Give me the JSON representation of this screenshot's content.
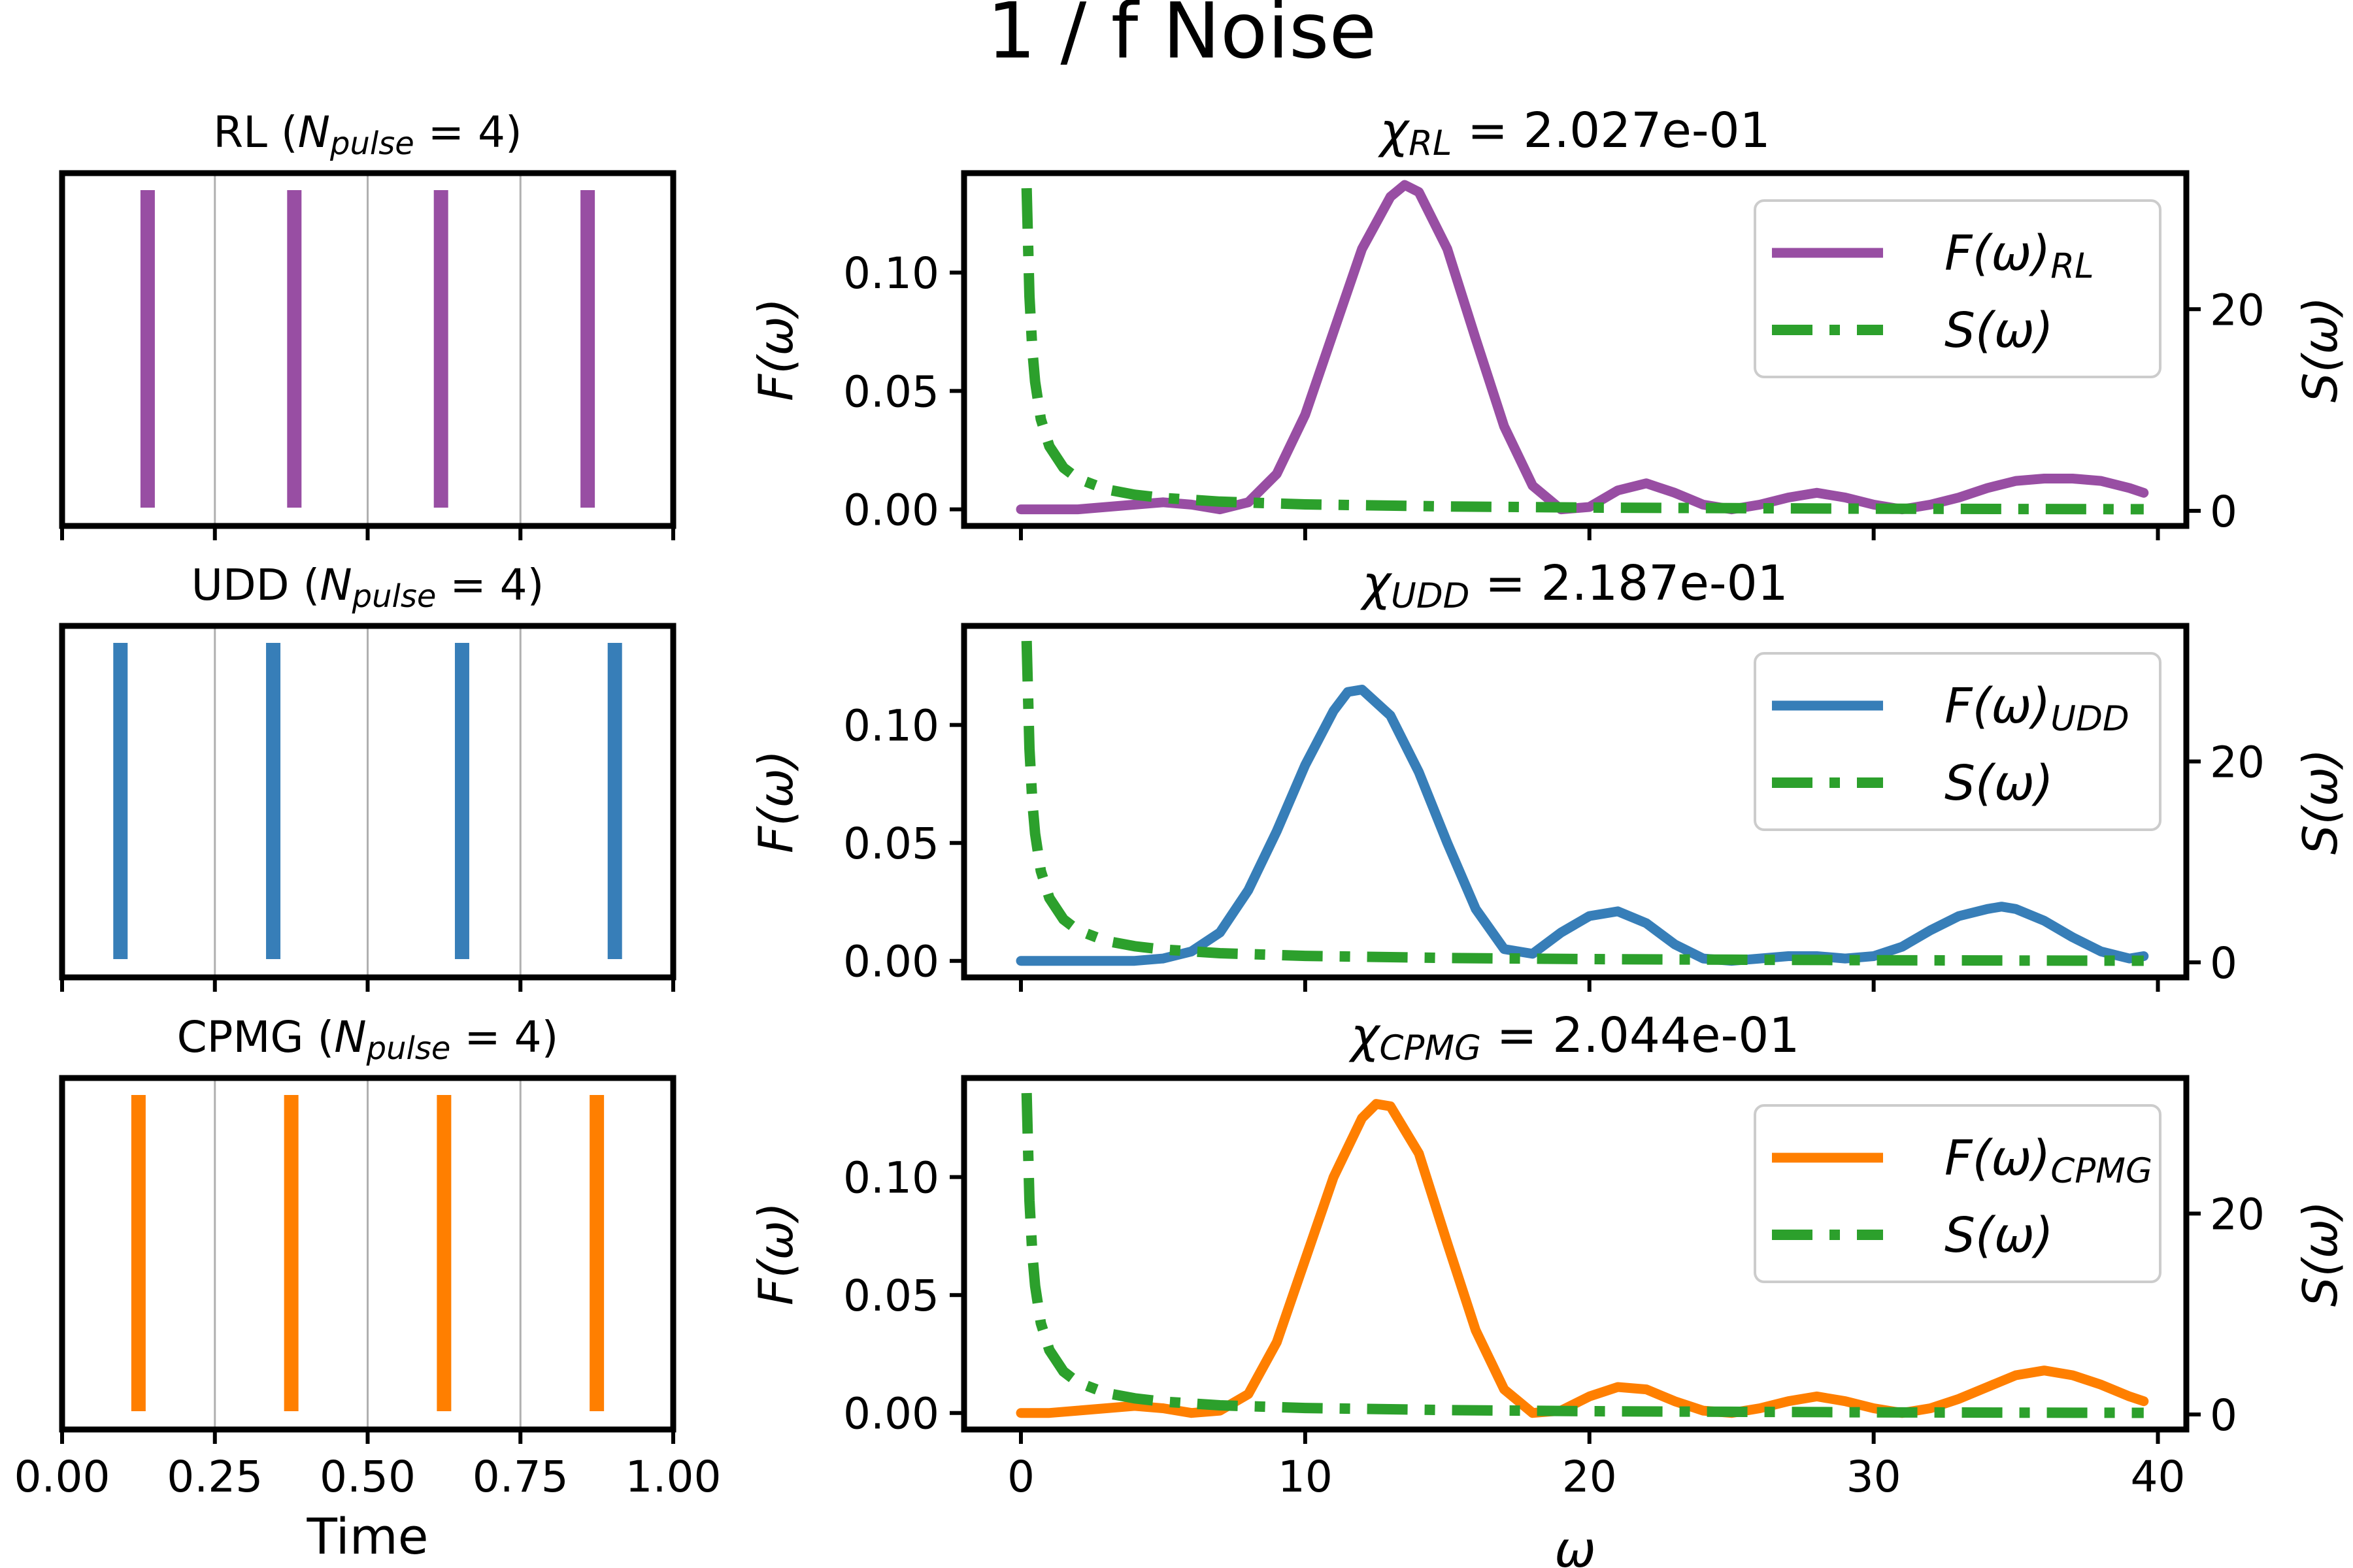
{
  "figure_title": "1 / f Noise",
  "colors": {
    "rl": "#984ea3",
    "udd": "#377eb8",
    "cpmg": "#ff7f00",
    "noise": "#2ca02c",
    "axes": "#000000",
    "grid": "#b0b0b0"
  },
  "chart_data": [
    {
      "type": "bar",
      "title": "RL (N_pulse = 4)",
      "title_main": "RL (",
      "title_var": "N",
      "title_sub": "pulse",
      "title_tail": " = 4)",
      "xlabel": "",
      "ylabel": "",
      "xlim": [
        0,
        1
      ],
      "x_ticks": [
        0,
        0.25,
        0.5,
        0.75,
        1
      ],
      "x_tick_labels": [],
      "grid": "vertical",
      "pulse_times": [
        0.14,
        0.38,
        0.62,
        0.86
      ],
      "color": "rl"
    },
    {
      "type": "bar",
      "title": "UDD (N_pulse = 4)",
      "title_main": "UDD (",
      "title_var": "N",
      "title_sub": "pulse",
      "title_tail": " = 4)",
      "xlabel": "",
      "ylabel": "",
      "xlim": [
        0,
        1
      ],
      "x_ticks": [
        0,
        0.25,
        0.5,
        0.75,
        1
      ],
      "x_tick_labels": [],
      "grid": "vertical",
      "pulse_times": [
        0.0955,
        0.3455,
        0.6545,
        0.9045
      ],
      "color": "udd"
    },
    {
      "type": "bar",
      "title": "CPMG (N_pulse = 4)",
      "title_main": "CPMG (",
      "title_var": "N",
      "title_sub": "pulse",
      "title_tail": " = 4)",
      "xlabel": "Time",
      "ylabel": "",
      "xlim": [
        0,
        1
      ],
      "x_ticks": [
        0,
        0.25,
        0.5,
        0.75,
        1
      ],
      "x_tick_labels": [
        "0.00",
        "0.25",
        "0.50",
        "0.75",
        "1.00"
      ],
      "grid": "vertical",
      "pulse_times": [
        0.125,
        0.375,
        0.625,
        0.875
      ],
      "color": "cpmg"
    },
    {
      "type": "line",
      "title": "χ_RL = 2.027e-01",
      "title_var": "χ",
      "title_sub": "RL",
      "title_value": " = 2.027e-01",
      "xlabel": "",
      "ylabel": "F(ω)",
      "y2label": "S(ω)",
      "xlim": [
        -2,
        41
      ],
      "ylim": [
        -0.007,
        0.142
      ],
      "y2lim": [
        -1.5,
        33.5
      ],
      "x_ticks": [
        0,
        10,
        20,
        30,
        40
      ],
      "x_tick_labels": [],
      "y_ticks": [
        0,
        0.05,
        0.1
      ],
      "y_tick_labels": [
        "0.00",
        "0.05",
        "0.10"
      ],
      "y2_ticks": [
        0,
        20
      ],
      "y2_tick_labels": [
        "0",
        "20"
      ],
      "legend_position": "top-right",
      "filter_color": "rl",
      "legend": [
        {
          "label": "F(ω)",
          "sub": "RL",
          "style": "solid",
          "color": "rl"
        },
        {
          "label": "S(ω)",
          "sub": "",
          "style": "dashdot",
          "color": "noise"
        }
      ],
      "series": [
        {
          "name": "F(ω)_RL",
          "axis": "left",
          "x": [
            0,
            1,
            2,
            3,
            4,
            5,
            6,
            7,
            8,
            9,
            10,
            11,
            12,
            13,
            13.5,
            14,
            15,
            16,
            17,
            18,
            19,
            20,
            21,
            22,
            23,
            24,
            25,
            26,
            27,
            28,
            29,
            30,
            31,
            32,
            33,
            34,
            35,
            36,
            37,
            38,
            39,
            39.5
          ],
          "y": [
            0.0,
            0.0,
            0.0,
            0.001,
            0.002,
            0.003,
            0.002,
            0.0,
            0.003,
            0.015,
            0.04,
            0.075,
            0.11,
            0.132,
            0.137,
            0.134,
            0.11,
            0.072,
            0.035,
            0.01,
            0.0,
            0.001,
            0.008,
            0.011,
            0.007,
            0.002,
            0.0,
            0.002,
            0.005,
            0.007,
            0.005,
            0.002,
            0.0,
            0.002,
            0.005,
            0.009,
            0.012,
            0.013,
            0.013,
            0.012,
            0.009,
            0.007
          ]
        },
        {
          "name": "S(ω)",
          "axis": "right",
          "x": [
            0.2,
            0.3,
            0.4,
            0.5,
            0.7,
            1,
            1.5,
            2,
            3,
            4,
            5,
            7,
            10,
            15,
            20,
            25,
            30,
            35,
            39.5
          ],
          "y": [
            32,
            21.3,
            16,
            12.8,
            9.1,
            6.4,
            4.27,
            3.2,
            2.13,
            1.6,
            1.28,
            0.91,
            0.64,
            0.43,
            0.32,
            0.26,
            0.21,
            0.18,
            0.16
          ]
        }
      ]
    },
    {
      "type": "line",
      "title": "χ_UDD = 2.187e-01",
      "title_var": "χ",
      "title_sub": "UDD",
      "title_value": " = 2.187e-01",
      "xlabel": "",
      "ylabel": "F(ω)",
      "y2label": "S(ω)",
      "xlim": [
        -2,
        41
      ],
      "ylim": [
        -0.007,
        0.142
      ],
      "y2lim": [
        -1.5,
        33.5
      ],
      "x_ticks": [
        0,
        10,
        20,
        30,
        40
      ],
      "x_tick_labels": [],
      "y_ticks": [
        0,
        0.05,
        0.1
      ],
      "y_tick_labels": [
        "0.00",
        "0.05",
        "0.10"
      ],
      "y2_ticks": [
        0,
        20
      ],
      "y2_tick_labels": [
        "0",
        "20"
      ],
      "legend_position": "top-right",
      "filter_color": "udd",
      "legend": [
        {
          "label": "F(ω)",
          "sub": "UDD",
          "style": "solid",
          "color": "udd"
        },
        {
          "label": "S(ω)",
          "sub": "",
          "style": "dashdot",
          "color": "noise"
        }
      ],
      "series": [
        {
          "name": "F(ω)_UDD",
          "axis": "left",
          "x": [
            0,
            1,
            2,
            3,
            4,
            5,
            6,
            7,
            8,
            9,
            10,
            11,
            11.5,
            12,
            13,
            14,
            15,
            16,
            17,
            18,
            19,
            20,
            21,
            22,
            23,
            24,
            25,
            26,
            27,
            28,
            29,
            30,
            31,
            32,
            33,
            34,
            34.5,
            35,
            36,
            37,
            38,
            39,
            39.5
          ],
          "y": [
            0.0,
            0.0,
            0.0,
            0.0,
            0.0,
            0.001,
            0.004,
            0.012,
            0.03,
            0.055,
            0.083,
            0.106,
            0.114,
            0.115,
            0.104,
            0.08,
            0.05,
            0.022,
            0.005,
            0.003,
            0.012,
            0.019,
            0.021,
            0.016,
            0.007,
            0.001,
            0.0,
            0.001,
            0.002,
            0.002,
            0.001,
            0.002,
            0.006,
            0.013,
            0.019,
            0.022,
            0.023,
            0.022,
            0.017,
            0.01,
            0.004,
            0.001,
            0.002
          ]
        },
        {
          "name": "S(ω)",
          "axis": "right",
          "x": [
            0.2,
            0.3,
            0.4,
            0.5,
            0.7,
            1,
            1.5,
            2,
            3,
            4,
            5,
            7,
            10,
            15,
            20,
            25,
            30,
            35,
            39.5
          ],
          "y": [
            32,
            21.3,
            16,
            12.8,
            9.1,
            6.4,
            4.27,
            3.2,
            2.13,
            1.6,
            1.28,
            0.91,
            0.64,
            0.43,
            0.32,
            0.26,
            0.21,
            0.18,
            0.16
          ]
        }
      ]
    },
    {
      "type": "line",
      "title": "χ_CPMG = 2.044e-01",
      "title_var": "χ",
      "title_sub": "CPMG",
      "title_value": " = 2.044e-01",
      "xlabel": "ω",
      "ylabel": "F(ω)",
      "y2label": "S(ω)",
      "xlim": [
        -2,
        41
      ],
      "ylim": [
        -0.007,
        0.142
      ],
      "y2lim": [
        -1.5,
        33.5
      ],
      "x_ticks": [
        0,
        10,
        20,
        30,
        40
      ],
      "x_tick_labels": [
        "0",
        "10",
        "20",
        "30",
        "40"
      ],
      "y_ticks": [
        0,
        0.05,
        0.1
      ],
      "y_tick_labels": [
        "0.00",
        "0.05",
        "0.10"
      ],
      "y2_ticks": [
        0,
        20
      ],
      "y2_tick_labels": [
        "0",
        "20"
      ],
      "legend_position": "top-right",
      "filter_color": "cpmg",
      "legend": [
        {
          "label": "F(ω)",
          "sub": "CPMG",
          "style": "solid",
          "color": "cpmg"
        },
        {
          "label": "S(ω)",
          "sub": "",
          "style": "dashdot",
          "color": "noise"
        }
      ],
      "series": [
        {
          "name": "F(ω)_CPMG",
          "axis": "left",
          "x": [
            0,
            1,
            2,
            3,
            4,
            5,
            6,
            7,
            8,
            9,
            10,
            11,
            12,
            12.5,
            13,
            14,
            15,
            16,
            17,
            18,
            19,
            20,
            21,
            22,
            23,
            24,
            25,
            26,
            27,
            28,
            29,
            30,
            31,
            32,
            33,
            34,
            35,
            36,
            37,
            38,
            39,
            39.5
          ],
          "y": [
            0.0,
            0.0,
            0.001,
            0.002,
            0.003,
            0.002,
            0.0,
            0.001,
            0.008,
            0.03,
            0.065,
            0.1,
            0.125,
            0.131,
            0.13,
            0.11,
            0.072,
            0.035,
            0.01,
            0.0,
            0.001,
            0.007,
            0.011,
            0.01,
            0.005,
            0.001,
            0.0,
            0.002,
            0.005,
            0.007,
            0.005,
            0.002,
            0.0,
            0.002,
            0.006,
            0.011,
            0.016,
            0.018,
            0.016,
            0.012,
            0.007,
            0.005
          ]
        },
        {
          "name": "S(ω)",
          "axis": "right",
          "x": [
            0.2,
            0.3,
            0.4,
            0.5,
            0.7,
            1,
            1.5,
            2,
            3,
            4,
            5,
            7,
            10,
            15,
            20,
            25,
            30,
            35,
            39.5
          ],
          "y": [
            32,
            21.3,
            16,
            12.8,
            9.1,
            6.4,
            4.27,
            3.2,
            2.13,
            1.6,
            1.28,
            0.91,
            0.64,
            0.43,
            0.32,
            0.26,
            0.21,
            0.18,
            0.16
          ]
        }
      ]
    }
  ]
}
